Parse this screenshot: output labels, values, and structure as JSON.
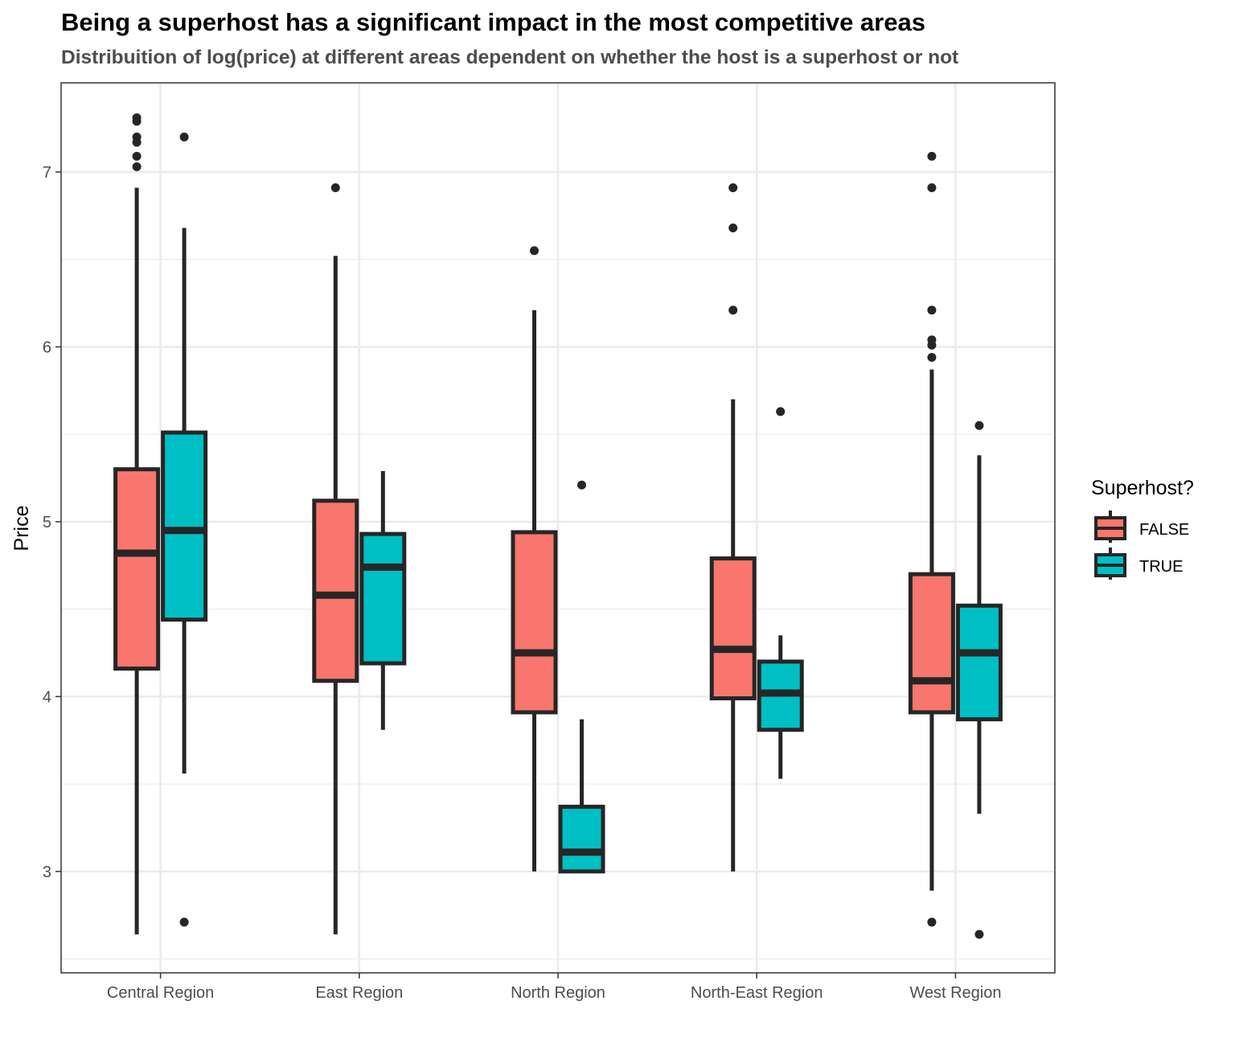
{
  "chart_data": {
    "type": "boxplot",
    "title": "Being a superhost has a significant impact in the most competitive areas",
    "subtitle": "Distribuition of log(price) at different areas dependent on whether the host is a superhost or not",
    "xlabel": "",
    "ylabel": "Price",
    "ylim": [
      2.42,
      7.51
    ],
    "y_ticks": [
      3,
      4,
      5,
      6,
      7
    ],
    "grid": true,
    "categories": [
      "Central Region",
      "East Region",
      "North Region",
      "North-East Region",
      "West Region"
    ],
    "legend": {
      "title": "Superhost?",
      "position": "right",
      "entries": [
        {
          "label": "FALSE",
          "color": "#F8766D"
        },
        {
          "label": "TRUE",
          "color": "#00BFC4"
        }
      ]
    },
    "series": [
      {
        "name": "FALSE",
        "color": "#F8766D",
        "boxes": [
          {
            "category": "Central Region",
            "whisker_low": 2.64,
            "q1": 4.16,
            "median": 4.82,
            "q3": 5.3,
            "whisker_high": 6.91,
            "outliers": [
              7.03,
              7.09,
              7.17,
              7.2,
              7.29,
              7.31
            ]
          },
          {
            "category": "East Region",
            "whisker_low": 2.64,
            "q1": 4.09,
            "median": 4.58,
            "q3": 5.12,
            "whisker_high": 6.52,
            "outliers": [
              6.91
            ]
          },
          {
            "category": "North Region",
            "whisker_low": 3.0,
            "q1": 3.91,
            "median": 4.25,
            "q3": 4.94,
            "whisker_high": 6.21,
            "outliers": [
              6.55
            ]
          },
          {
            "category": "North-East Region",
            "whisker_low": 3.0,
            "q1": 3.99,
            "median": 4.27,
            "q3": 4.79,
            "whisker_high": 5.7,
            "outliers": [
              6.21,
              6.68,
              6.91
            ]
          },
          {
            "category": "West Region",
            "whisker_low": 2.89,
            "q1": 3.91,
            "median": 4.09,
            "q3": 4.7,
            "whisker_high": 5.87,
            "outliers": [
              2.71,
              5.94,
              6.01,
              6.04,
              6.21,
              6.91,
              7.09
            ]
          }
        ]
      },
      {
        "name": "TRUE",
        "color": "#00BFC4",
        "boxes": [
          {
            "category": "Central Region",
            "whisker_low": 3.56,
            "q1": 4.44,
            "median": 4.95,
            "q3": 5.51,
            "whisker_high": 6.68,
            "outliers": [
              2.71,
              7.2
            ]
          },
          {
            "category": "East Region",
            "whisker_low": 3.81,
            "q1": 4.19,
            "median": 4.74,
            "q3": 4.93,
            "whisker_high": 5.29,
            "outliers": []
          },
          {
            "category": "North Region",
            "whisker_low": 3.0,
            "q1": 3.0,
            "median": 3.11,
            "q3": 3.37,
            "whisker_high": 3.87,
            "outliers": [
              5.21
            ]
          },
          {
            "category": "North-East Region",
            "whisker_low": 3.53,
            "q1": 3.81,
            "median": 4.02,
            "q3": 4.2,
            "whisker_high": 4.35,
            "outliers": [
              5.63
            ]
          },
          {
            "category": "West Region",
            "whisker_low": 3.33,
            "q1": 3.87,
            "median": 4.25,
            "q3": 4.52,
            "whisker_high": 5.38,
            "outliers": [
              2.64,
              5.55
            ]
          }
        ]
      }
    ]
  }
}
